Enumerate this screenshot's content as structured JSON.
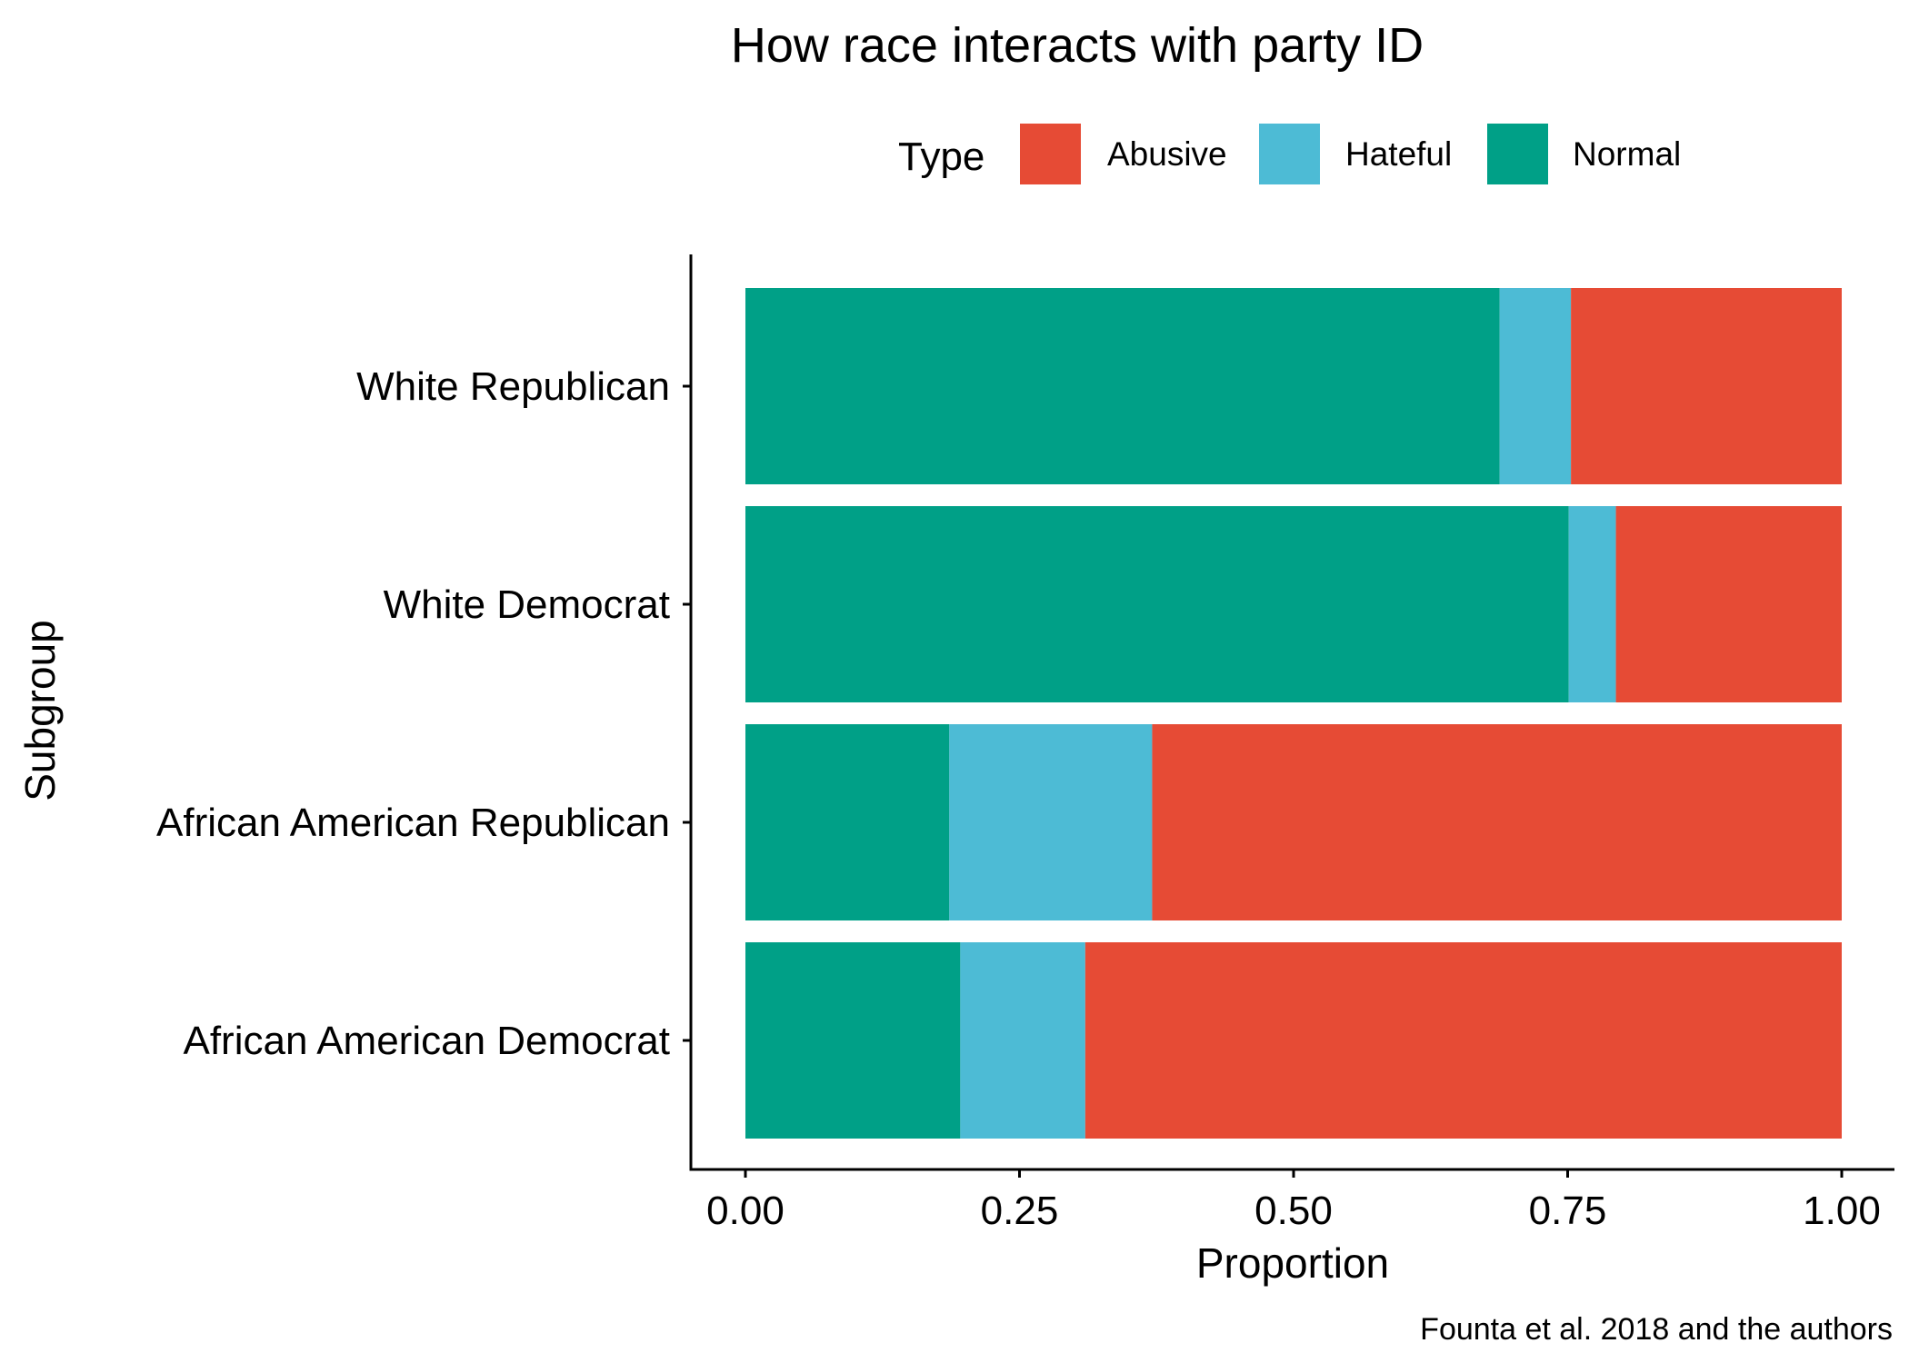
{
  "chart_data": {
    "type": "bar",
    "orientation": "horizontal",
    "stacked": true,
    "title": "How race interacts with party ID",
    "xlabel": "Proportion",
    "ylabel": "Subgroup",
    "caption": "Founta et al. 2018 and the authors",
    "xlim": [
      0,
      1
    ],
    "xticks": [
      "0.00",
      "0.25",
      "0.50",
      "0.75",
      "1.00"
    ],
    "grid": false,
    "legend": {
      "title": "Type",
      "placement": "top",
      "entries": [
        {
          "name": "Abusive",
          "color": "#E64B35"
        },
        {
          "name": "Hateful",
          "color": "#4DBBD5"
        },
        {
          "name": "Normal",
          "color": "#00A087"
        }
      ]
    },
    "categories": [
      "White Republican",
      "White Democrat",
      "African American Republican",
      "African American Democrat"
    ],
    "series": [
      {
        "name": "Normal",
        "color": "#00A087",
        "values": [
          0.688,
          0.751,
          0.186,
          0.196
        ]
      },
      {
        "name": "Hateful",
        "color": "#4DBBD5",
        "values": [
          0.065,
          0.043,
          0.185,
          0.114
        ]
      },
      {
        "name": "Abusive",
        "color": "#E64B35",
        "values": [
          0.247,
          0.206,
          0.629,
          0.69
        ]
      }
    ]
  }
}
